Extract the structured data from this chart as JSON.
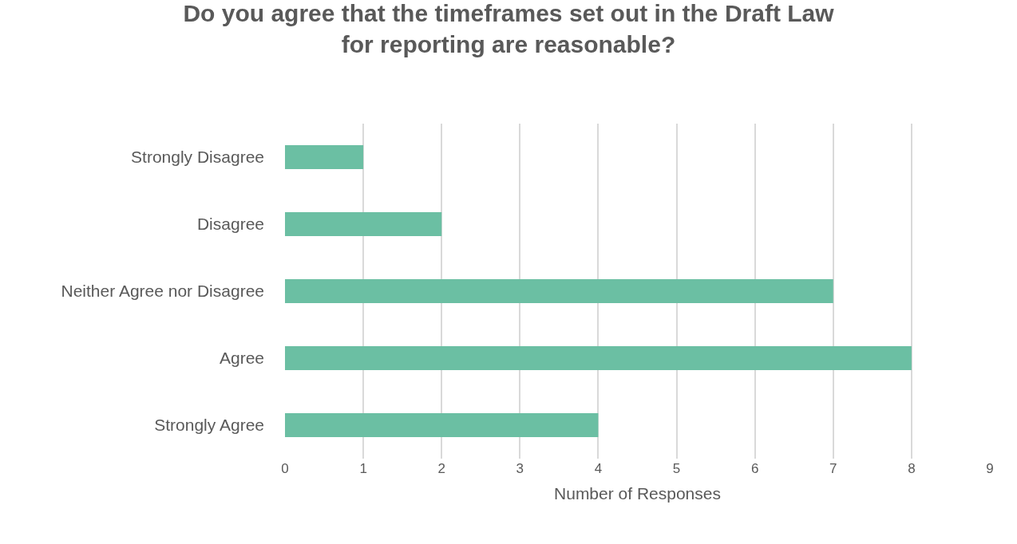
{
  "chart_data": {
    "type": "bar",
    "orientation": "horizontal",
    "title": "Do you agree that the timeframes set out in the Draft Law\nfor reporting are reasonable?",
    "xlabel": "Number of Responses",
    "categories": [
      "Strongly Disagree",
      "Disagree",
      "Neither Agree nor Disagree",
      "Agree",
      "Strongly Agree"
    ],
    "values": [
      1,
      2,
      7,
      8,
      4
    ],
    "color": "#6bbfa3",
    "xlim": [
      0,
      9
    ],
    "xticks": [
      0,
      1,
      2,
      3,
      4,
      5,
      6,
      7,
      8,
      9
    ],
    "grid": "x",
    "legend": false
  }
}
